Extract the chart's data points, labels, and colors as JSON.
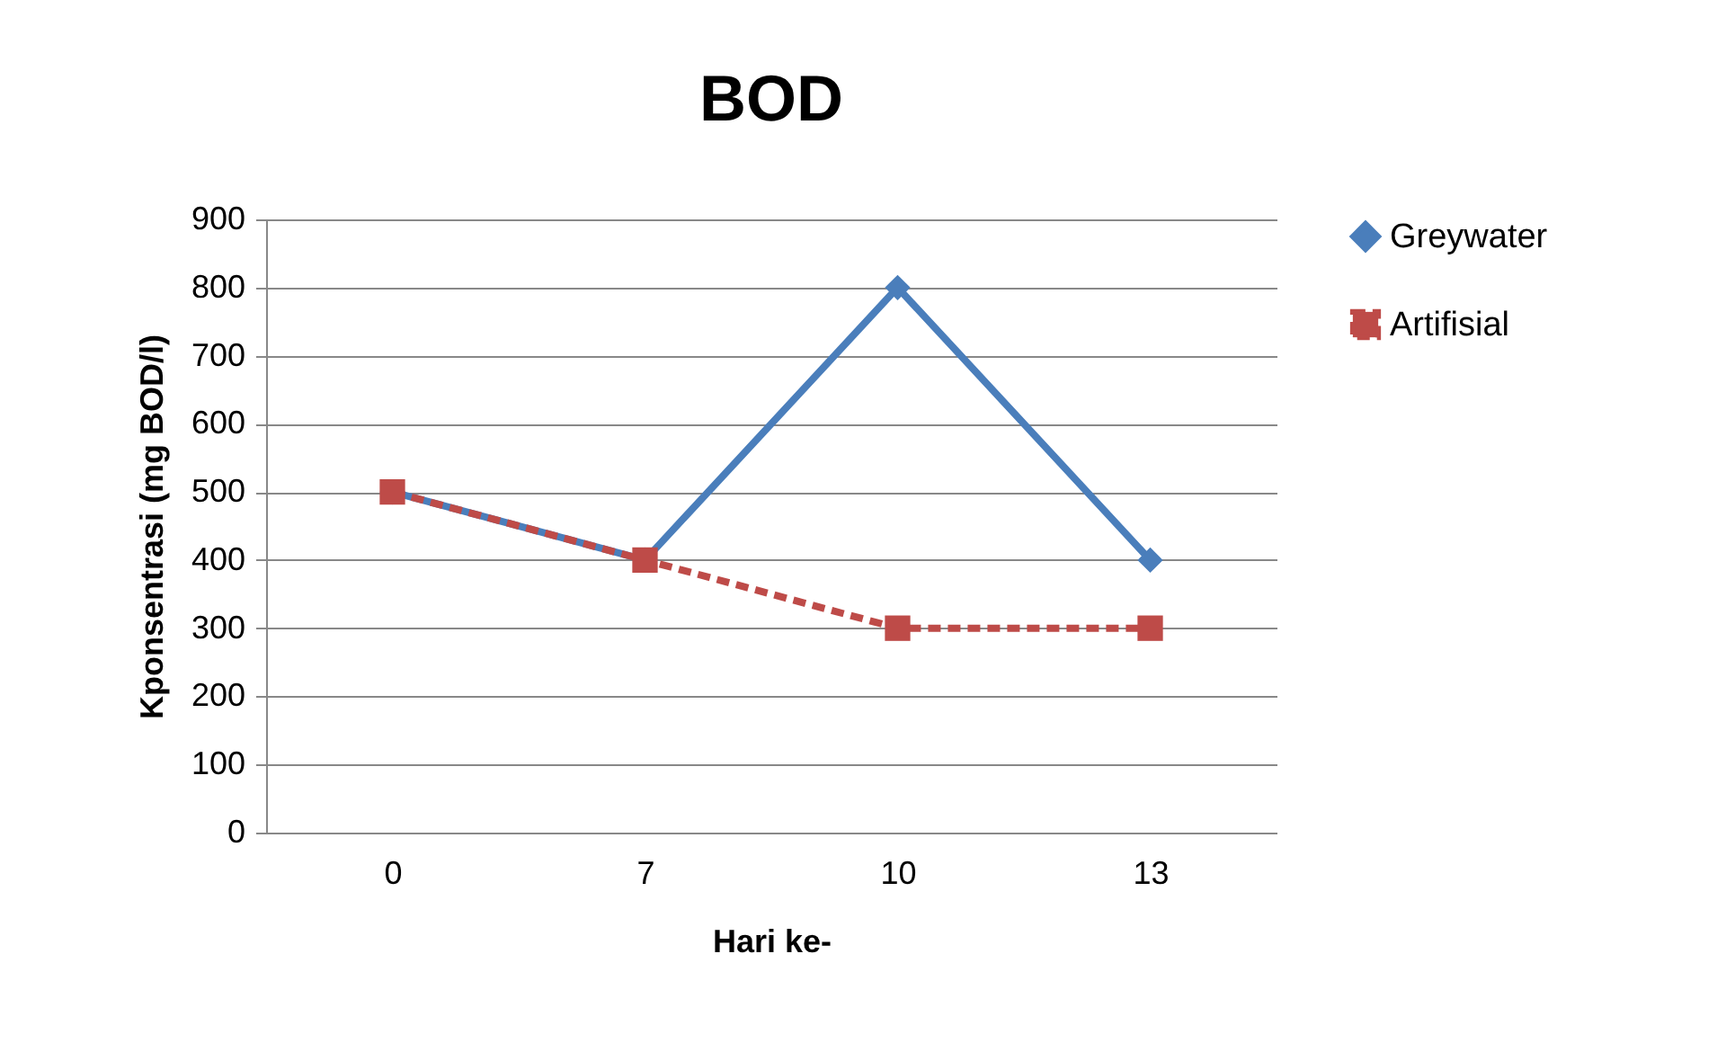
{
  "chart_data": {
    "type": "line",
    "title": "BOD",
    "xlabel": "Hari ke-",
    "ylabel": "Kponsentrasi (mg BOD/l)",
    "categories": [
      "0",
      "7",
      "10",
      "13"
    ],
    "series": [
      {
        "name": "Greywater",
        "color": "#4a7ebb",
        "marker": "diamond",
        "line_style": "solid",
        "values": [
          500,
          400,
          800,
          400
        ]
      },
      {
        "name": "Artifisial",
        "color": "#be4b48",
        "marker": "square",
        "line_style": "dashed",
        "values": [
          500,
          400,
          300,
          300
        ]
      }
    ],
    "ylim": [
      0,
      900
    ],
    "yticks": [
      0,
      100,
      200,
      300,
      400,
      500,
      600,
      700,
      800,
      900
    ],
    "grid": "y",
    "legend": "right"
  }
}
